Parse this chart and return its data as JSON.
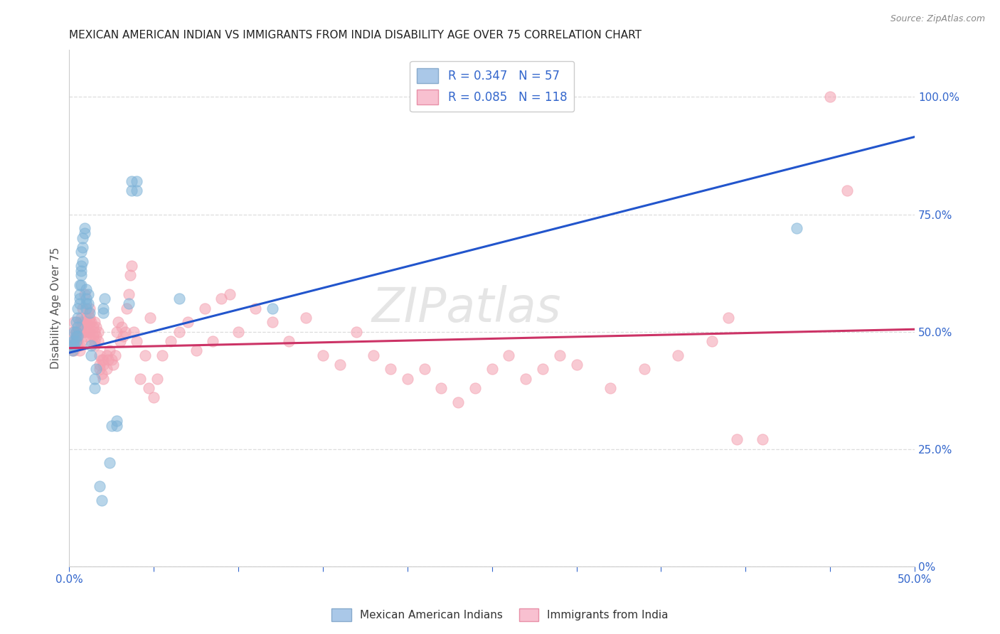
{
  "title": "MEXICAN AMERICAN INDIAN VS IMMIGRANTS FROM INDIA DISABILITY AGE OVER 75 CORRELATION CHART",
  "source": "Source: ZipAtlas.com",
  "ylabel": "Disability Age Over 75",
  "right_ytick_vals": [
    0.0,
    0.25,
    0.5,
    0.75,
    1.0
  ],
  "right_ytick_labels": [
    "0%",
    "25.0%",
    "50.0%",
    "75.0%",
    "100.0%"
  ],
  "xmin": 0.0,
  "xmax": 0.5,
  "ymin": 0.0,
  "ymax": 1.1,
  "watermark": "ZIPatlas",
  "blue_color": "#7EB3D8",
  "pink_color": "#F4A0B0",
  "blue_scatter": [
    [
      0.001,
      0.47
    ],
    [
      0.002,
      0.48
    ],
    [
      0.002,
      0.46
    ],
    [
      0.003,
      0.5
    ],
    [
      0.003,
      0.48
    ],
    [
      0.003,
      0.47
    ],
    [
      0.004,
      0.52
    ],
    [
      0.004,
      0.49
    ],
    [
      0.004,
      0.48
    ],
    [
      0.004,
      0.5
    ],
    [
      0.005,
      0.53
    ],
    [
      0.005,
      0.51
    ],
    [
      0.005,
      0.55
    ],
    [
      0.005,
      0.49
    ],
    [
      0.006,
      0.58
    ],
    [
      0.006,
      0.57
    ],
    [
      0.006,
      0.6
    ],
    [
      0.006,
      0.56
    ],
    [
      0.007,
      0.62
    ],
    [
      0.007,
      0.6
    ],
    [
      0.007,
      0.63
    ],
    [
      0.007,
      0.64
    ],
    [
      0.007,
      0.67
    ],
    [
      0.008,
      0.65
    ],
    [
      0.008,
      0.68
    ],
    [
      0.008,
      0.7
    ],
    [
      0.009,
      0.72
    ],
    [
      0.009,
      0.71
    ],
    [
      0.01,
      0.55
    ],
    [
      0.01,
      0.57
    ],
    [
      0.01,
      0.59
    ],
    [
      0.01,
      0.56
    ],
    [
      0.011,
      0.58
    ],
    [
      0.011,
      0.56
    ],
    [
      0.012,
      0.54
    ],
    [
      0.013,
      0.47
    ],
    [
      0.013,
      0.45
    ],
    [
      0.015,
      0.4
    ],
    [
      0.015,
      0.38
    ],
    [
      0.016,
      0.42
    ],
    [
      0.018,
      0.17
    ],
    [
      0.019,
      0.14
    ],
    [
      0.02,
      0.55
    ],
    [
      0.02,
      0.54
    ],
    [
      0.021,
      0.57
    ],
    [
      0.024,
      0.22
    ],
    [
      0.025,
      0.3
    ],
    [
      0.028,
      0.31
    ],
    [
      0.028,
      0.3
    ],
    [
      0.035,
      0.56
    ],
    [
      0.037,
      0.8
    ],
    [
      0.037,
      0.82
    ],
    [
      0.04,
      0.82
    ],
    [
      0.04,
      0.8
    ],
    [
      0.065,
      0.57
    ],
    [
      0.12,
      0.55
    ],
    [
      0.43,
      0.72
    ]
  ],
  "pink_scatter": [
    [
      0.001,
      0.47
    ],
    [
      0.002,
      0.46
    ],
    [
      0.002,
      0.5
    ],
    [
      0.003,
      0.48
    ],
    [
      0.003,
      0.52
    ],
    [
      0.003,
      0.47
    ],
    [
      0.003,
      0.46
    ],
    [
      0.004,
      0.48
    ],
    [
      0.004,
      0.49
    ],
    [
      0.004,
      0.5
    ],
    [
      0.004,
      0.48
    ],
    [
      0.005,
      0.47
    ],
    [
      0.005,
      0.5
    ],
    [
      0.005,
      0.48
    ],
    [
      0.005,
      0.49
    ],
    [
      0.006,
      0.52
    ],
    [
      0.006,
      0.5
    ],
    [
      0.006,
      0.47
    ],
    [
      0.006,
      0.46
    ],
    [
      0.007,
      0.5
    ],
    [
      0.007,
      0.48
    ],
    [
      0.007,
      0.51
    ],
    [
      0.007,
      0.53
    ],
    [
      0.008,
      0.5
    ],
    [
      0.008,
      0.52
    ],
    [
      0.008,
      0.55
    ],
    [
      0.009,
      0.58
    ],
    [
      0.009,
      0.5
    ],
    [
      0.009,
      0.52
    ],
    [
      0.01,
      0.53
    ],
    [
      0.01,
      0.5
    ],
    [
      0.01,
      0.52
    ],
    [
      0.01,
      0.49
    ],
    [
      0.011,
      0.5
    ],
    [
      0.011,
      0.54
    ],
    [
      0.012,
      0.52
    ],
    [
      0.012,
      0.55
    ],
    [
      0.012,
      0.5
    ],
    [
      0.012,
      0.53
    ],
    [
      0.013,
      0.48
    ],
    [
      0.013,
      0.52
    ],
    [
      0.014,
      0.49
    ],
    [
      0.014,
      0.51
    ],
    [
      0.015,
      0.5
    ],
    [
      0.015,
      0.48
    ],
    [
      0.015,
      0.52
    ],
    [
      0.015,
      0.47
    ],
    [
      0.016,
      0.49
    ],
    [
      0.016,
      0.51
    ],
    [
      0.017,
      0.5
    ],
    [
      0.017,
      0.48
    ],
    [
      0.018,
      0.42
    ],
    [
      0.018,
      0.45
    ],
    [
      0.018,
      0.43
    ],
    [
      0.019,
      0.44
    ],
    [
      0.019,
      0.41
    ],
    [
      0.02,
      0.44
    ],
    [
      0.02,
      0.43
    ],
    [
      0.02,
      0.4
    ],
    [
      0.022,
      0.42
    ],
    [
      0.022,
      0.45
    ],
    [
      0.023,
      0.44
    ],
    [
      0.024,
      0.46
    ],
    [
      0.025,
      0.44
    ],
    [
      0.026,
      0.43
    ],
    [
      0.027,
      0.45
    ],
    [
      0.028,
      0.5
    ],
    [
      0.029,
      0.52
    ],
    [
      0.03,
      0.48
    ],
    [
      0.031,
      0.51
    ],
    [
      0.032,
      0.49
    ],
    [
      0.033,
      0.5
    ],
    [
      0.034,
      0.55
    ],
    [
      0.035,
      0.58
    ],
    [
      0.036,
      0.62
    ],
    [
      0.037,
      0.64
    ],
    [
      0.038,
      0.5
    ],
    [
      0.04,
      0.48
    ],
    [
      0.042,
      0.4
    ],
    [
      0.045,
      0.45
    ],
    [
      0.047,
      0.38
    ],
    [
      0.048,
      0.53
    ],
    [
      0.05,
      0.36
    ],
    [
      0.052,
      0.4
    ],
    [
      0.055,
      0.45
    ],
    [
      0.06,
      0.48
    ],
    [
      0.065,
      0.5
    ],
    [
      0.07,
      0.52
    ],
    [
      0.075,
      0.46
    ],
    [
      0.08,
      0.55
    ],
    [
      0.085,
      0.48
    ],
    [
      0.09,
      0.57
    ],
    [
      0.095,
      0.58
    ],
    [
      0.1,
      0.5
    ],
    [
      0.11,
      0.55
    ],
    [
      0.12,
      0.52
    ],
    [
      0.13,
      0.48
    ],
    [
      0.14,
      0.53
    ],
    [
      0.15,
      0.45
    ],
    [
      0.16,
      0.43
    ],
    [
      0.17,
      0.5
    ],
    [
      0.18,
      0.45
    ],
    [
      0.19,
      0.42
    ],
    [
      0.2,
      0.4
    ],
    [
      0.21,
      0.42
    ],
    [
      0.22,
      0.38
    ],
    [
      0.23,
      0.35
    ],
    [
      0.24,
      0.38
    ],
    [
      0.25,
      0.42
    ],
    [
      0.26,
      0.45
    ],
    [
      0.27,
      0.4
    ],
    [
      0.28,
      0.42
    ],
    [
      0.29,
      0.45
    ],
    [
      0.3,
      0.43
    ],
    [
      0.32,
      0.38
    ],
    [
      0.34,
      0.42
    ],
    [
      0.36,
      0.45
    ],
    [
      0.38,
      0.48
    ],
    [
      0.39,
      0.53
    ],
    [
      0.395,
      0.27
    ],
    [
      0.41,
      0.27
    ],
    [
      0.45,
      1.0
    ],
    [
      0.46,
      0.8
    ]
  ],
  "blue_line": {
    "x0": 0.0,
    "y0": 0.455,
    "x1": 0.5,
    "y1": 0.915
  },
  "pink_line": {
    "x0": 0.0,
    "y0": 0.465,
    "x1": 0.5,
    "y1": 0.505
  },
  "grid_color": "#dddddd",
  "bg_color": "#ffffff",
  "title_fontsize": 11,
  "axis_label_color": "#555555",
  "blue_line_color": "#2255cc",
  "pink_line_color": "#cc3366"
}
